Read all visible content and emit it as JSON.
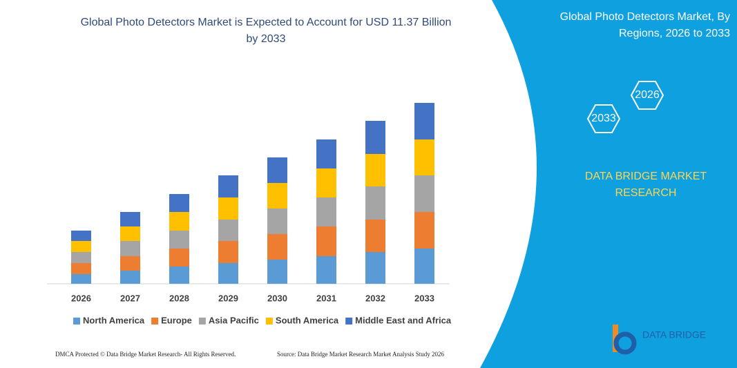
{
  "chart_data": {
    "type": "stacked-bar",
    "title_lines": [
      "Global Photo Detectors Market is Expected to Account for USD 11.37 Billion",
      "by 2033"
    ],
    "categories": [
      "2026",
      "2027",
      "2028",
      "2029",
      "2030",
      "2031",
      "2032",
      "2033"
    ],
    "series": [
      {
        "name": "North America",
        "color": "#5b9bd5",
        "values": [
          14,
          19,
          25,
          30,
          35,
          40,
          46,
          51
        ]
      },
      {
        "name": "Europe",
        "color": "#ed7d31",
        "values": [
          16,
          21,
          26,
          32,
          37,
          43,
          47,
          53
        ]
      },
      {
        "name": "Asia Pacific",
        "color": "#a5a5a5",
        "values": [
          16,
          22,
          26,
          31,
          37,
          42,
          48,
          53
        ]
      },
      {
        "name": "South America",
        "color": "#ffc000",
        "values": [
          16,
          21,
          27,
          32,
          37,
          42,
          47,
          52
        ]
      },
      {
        "name": "Middle East and Africa",
        "color": "#4472c4",
        "values": [
          15,
          21,
          26,
          32,
          37,
          42,
          48,
          53
        ]
      }
    ]
  },
  "side_panel": {
    "title_lines": [
      "Global Photo Detectors Market, By",
      "Regions, 2026 to 2033"
    ],
    "hexagons": [
      "2033",
      "2026"
    ],
    "brand_lines": [
      "DATA BRIDGE MARKET",
      "RESEARCH"
    ]
  },
  "footer": {
    "left": "DMCA Protected © Data Bridge Market Research-  All Rights Reserved.",
    "right": "Source: Data Bridge Market Research  Market Analysis Study 2026",
    "logo": "DATA BRIDGE"
  }
}
